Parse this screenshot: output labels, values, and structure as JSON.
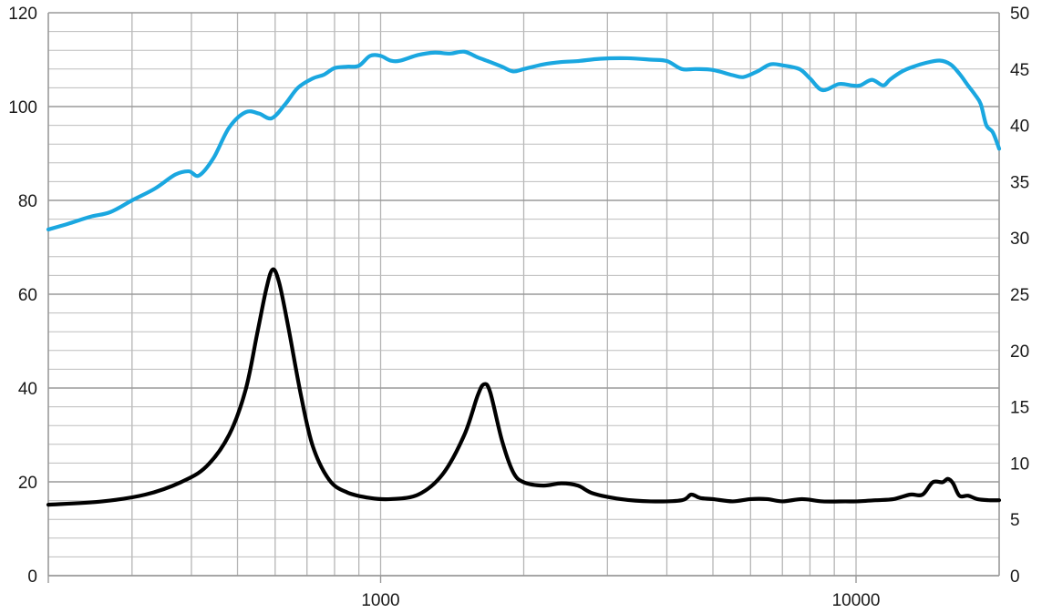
{
  "chart_data": {
    "type": "line",
    "x_scale": "log",
    "xlim": [
      200,
      20000
    ],
    "ylim_left": [
      0,
      120
    ],
    "ylim_right": [
      0,
      50
    ],
    "grid": true,
    "legend": "none",
    "x_tick_labels": [
      {
        "value": 1000,
        "label": "1000"
      },
      {
        "value": 10000,
        "label": "10000"
      }
    ],
    "y_left_ticks": [
      0,
      20,
      40,
      60,
      80,
      100,
      120
    ],
    "y_right_ticks": [
      0,
      5,
      10,
      15,
      20,
      25,
      30,
      35,
      40,
      45,
      50
    ],
    "series": [
      {
        "axis": "left",
        "color": "#1aa7e0",
        "points": [
          [
            200,
            73.8
          ],
          [
            220,
            75
          ],
          [
            245,
            76.5
          ],
          [
            270,
            77.5
          ],
          [
            300,
            80
          ],
          [
            335,
            82.5
          ],
          [
            370,
            85.5
          ],
          [
            395,
            86.2
          ],
          [
            415,
            85.3
          ],
          [
            445,
            89
          ],
          [
            480,
            95.5
          ],
          [
            520,
            98.8
          ],
          [
            555,
            98.5
          ],
          [
            590,
            97.5
          ],
          [
            630,
            100.5
          ],
          [
            670,
            104
          ],
          [
            720,
            106
          ],
          [
            760,
            106.8
          ],
          [
            800,
            108.2
          ],
          [
            850,
            108.5
          ],
          [
            900,
            108.7
          ],
          [
            950,
            110.8
          ],
          [
            1000,
            110.8
          ],
          [
            1050,
            109.8
          ],
          [
            1100,
            109.8
          ],
          [
            1200,
            111
          ],
          [
            1300,
            111.5
          ],
          [
            1400,
            111.3
          ],
          [
            1500,
            111.7
          ],
          [
            1600,
            110.5
          ],
          [
            1700,
            109.5
          ],
          [
            1800,
            108.5
          ],
          [
            1900,
            107.5
          ],
          [
            2000,
            108
          ],
          [
            2200,
            109
          ],
          [
            2400,
            109.5
          ],
          [
            2600,
            109.7
          ],
          [
            2900,
            110.2
          ],
          [
            3300,
            110.3
          ],
          [
            3700,
            110
          ],
          [
            4000,
            109.7
          ],
          [
            4300,
            108
          ],
          [
            4600,
            108
          ],
          [
            5000,
            107.8
          ],
          [
            5500,
            106.7
          ],
          [
            5800,
            106.3
          ],
          [
            6200,
            107.5
          ],
          [
            6600,
            109
          ],
          [
            7000,
            108.8
          ],
          [
            7600,
            108
          ],
          [
            8000,
            106
          ],
          [
            8500,
            103.5
          ],
          [
            9200,
            104.8
          ],
          [
            9800,
            104.5
          ],
          [
            10200,
            104.5
          ],
          [
            10800,
            105.7
          ],
          [
            11400,
            104.5
          ],
          [
            11800,
            105.8
          ],
          [
            12500,
            107.5
          ],
          [
            13200,
            108.5
          ],
          [
            14000,
            109.3
          ],
          [
            15000,
            109.8
          ],
          [
            15800,
            109
          ],
          [
            16500,
            107
          ],
          [
            17200,
            104.5
          ],
          [
            17800,
            102.5
          ],
          [
            18300,
            100.5
          ],
          [
            18800,
            96
          ],
          [
            19400,
            94.5
          ],
          [
            20000,
            91
          ]
        ]
      },
      {
        "axis": "right",
        "color": "#000000",
        "points": [
          [
            200,
            6.3
          ],
          [
            260,
            6.6
          ],
          [
            320,
            7.2
          ],
          [
            380,
            8.3
          ],
          [
            430,
            9.7
          ],
          [
            480,
            12.5
          ],
          [
            520,
            16.5
          ],
          [
            550,
            21.5
          ],
          [
            575,
            25.5
          ],
          [
            593,
            27.2
          ],
          [
            612,
            26
          ],
          [
            640,
            22
          ],
          [
            680,
            16
          ],
          [
            720,
            11.5
          ],
          [
            780,
            8.5
          ],
          [
            850,
            7.4
          ],
          [
            950,
            6.9
          ],
          [
            1050,
            6.8
          ],
          [
            1200,
            7.2
          ],
          [
            1350,
            9
          ],
          [
            1500,
            12.5
          ],
          [
            1600,
            16
          ],
          [
            1650,
            17
          ],
          [
            1700,
            16.3
          ],
          [
            1800,
            12
          ],
          [
            1900,
            9.2
          ],
          [
            2000,
            8.3
          ],
          [
            2200,
            8
          ],
          [
            2400,
            8.2
          ],
          [
            2600,
            8
          ],
          [
            2800,
            7.3
          ],
          [
            3200,
            6.8
          ],
          [
            3700,
            6.6
          ],
          [
            4300,
            6.7
          ],
          [
            4500,
            7.2
          ],
          [
            4700,
            6.9
          ],
          [
            5000,
            6.8
          ],
          [
            5500,
            6.6
          ],
          [
            6000,
            6.8
          ],
          [
            6500,
            6.8
          ],
          [
            7000,
            6.6
          ],
          [
            7700,
            6.8
          ],
          [
            8500,
            6.6
          ],
          [
            9500,
            6.6
          ],
          [
            10000,
            6.6
          ],
          [
            11000,
            6.7
          ],
          [
            12000,
            6.8
          ],
          [
            13000,
            7.2
          ],
          [
            13800,
            7.2
          ],
          [
            14500,
            8.3
          ],
          [
            15200,
            8.3
          ],
          [
            15600,
            8.6
          ],
          [
            16000,
            8.2
          ],
          [
            16500,
            7.1
          ],
          [
            17200,
            7.1
          ],
          [
            18000,
            6.8
          ],
          [
            19000,
            6.7
          ],
          [
            20000,
            6.7
          ]
        ]
      }
    ]
  }
}
